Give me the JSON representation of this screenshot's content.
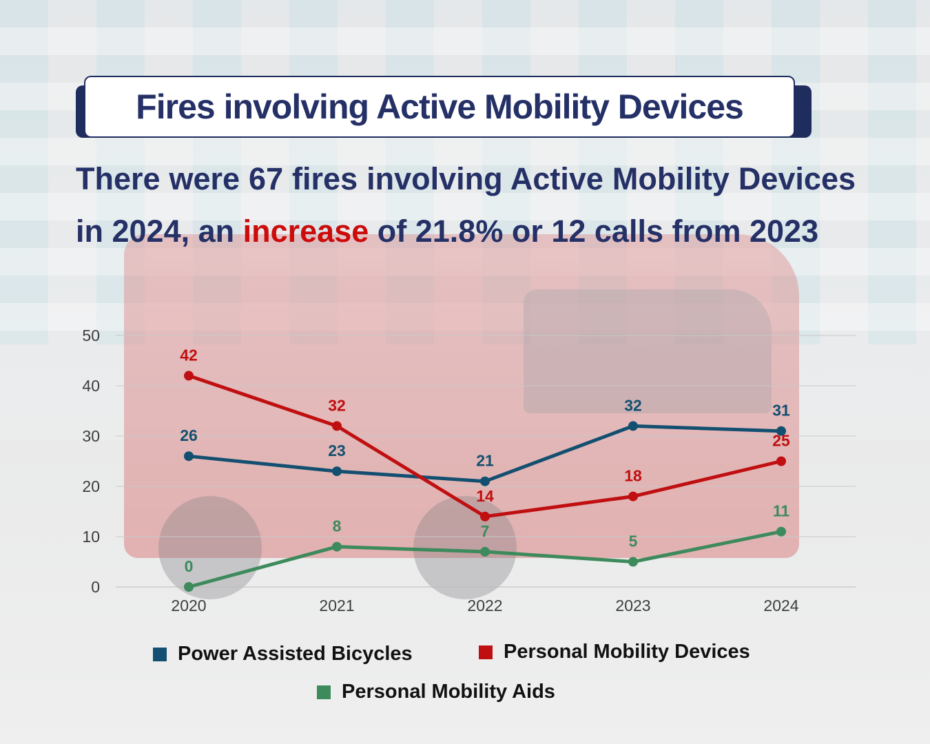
{
  "title": "Fires involving Active Mobility Devices",
  "headline": {
    "before": "There were 67 fires involving Active Mobility Devices in 2024, an ",
    "highlight": "increase",
    "after": " of 21.8% or 12 calls from 2023"
  },
  "colors": {
    "title": "#243066",
    "highlight": "#cc0b0b",
    "pab": "#134f70",
    "pmd": "#c00f10",
    "pma": "#3d8a5c"
  },
  "chart_data": {
    "type": "line",
    "categories": [
      "2020",
      "2021",
      "2022",
      "2023",
      "2024"
    ],
    "ylim": [
      0,
      50
    ],
    "yticks": [
      "0",
      "10",
      "20",
      "30",
      "40",
      "50"
    ],
    "grid": true,
    "legend_position": "bottom",
    "series": [
      {
        "key": "pab",
        "name": "Power Assisted Bicycles",
        "color": "#134f70",
        "values": [
          26,
          23,
          21,
          32,
          31
        ]
      },
      {
        "key": "pmd",
        "name": "Personal Mobility Devices",
        "color": "#c00f10",
        "values": [
          42,
          32,
          14,
          18,
          25
        ]
      },
      {
        "key": "pma",
        "name": "Personal Mobility Aids",
        "color": "#3d8a5c",
        "values": [
          0,
          8,
          7,
          5,
          11
        ]
      }
    ]
  }
}
